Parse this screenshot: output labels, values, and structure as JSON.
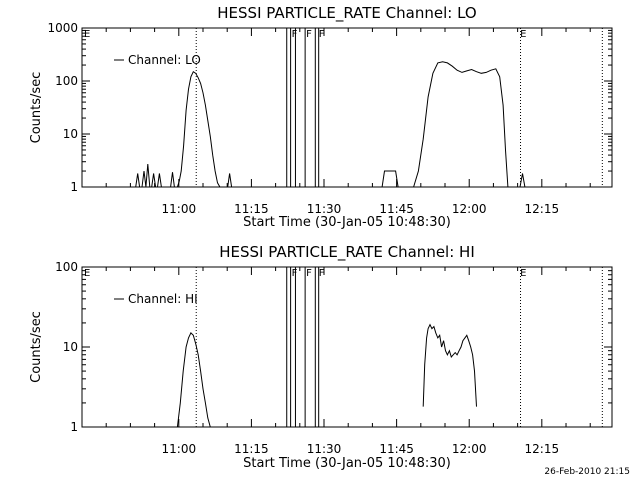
{
  "footer_date": "26-Feb-2010 21:15",
  "chart_data": [
    {
      "type": "line",
      "title": "HESSI PARTICLE_RATE Channel: LO",
      "xlabel": "Start Time (30-Jan-05 10:48:30)",
      "ylabel": "Counts/sec",
      "yscale": "log",
      "ylim": [
        1,
        1000
      ],
      "xlim_min": [
        -8.5,
        101
      ],
      "x_ticks": [
        {
          "t": 11.5,
          "label": "11:00"
        },
        {
          "t": 26.5,
          "label": "11:15"
        },
        {
          "t": 41.5,
          "label": "11:30"
        },
        {
          "t": 56.5,
          "label": "11:45"
        },
        {
          "t": 71.5,
          "label": "12:00"
        },
        {
          "t": 86.5,
          "label": "12:15"
        }
      ],
      "y_ticks": [
        {
          "v": 1,
          "label": "1"
        },
        {
          "v": 10,
          "label": "10"
        },
        {
          "v": 100,
          "label": "100"
        },
        {
          "v": 1000,
          "label": "1000"
        }
      ],
      "legend": "Channel: LO",
      "legend_position": "top-left",
      "flags": [
        {
          "t": -8.3,
          "label": "E"
        },
        {
          "t": 81.8,
          "label": "E"
        },
        {
          "t": 34.6,
          "label": "F"
        },
        {
          "t": 37.6,
          "label": "F"
        },
        {
          "t": 40.2,
          "label": "F"
        }
      ],
      "dotted_lines": [
        15.1,
        82.1,
        99.0
      ],
      "solid_lines": [
        33.8,
        34.6,
        35.6,
        37.6,
        39.7,
        40.4
      ],
      "series": [
        {
          "segments": [
            [
              [
                2.6,
                1
              ],
              [
                3.0,
                1.8
              ],
              [
                3.4,
                1
              ],
              [
                3.9,
                1
              ],
              [
                4.3,
                2.0
              ],
              [
                4.7,
                1
              ],
              [
                5.1,
                2.7
              ],
              [
                5.5,
                1
              ],
              [
                5.9,
                1
              ],
              [
                6.3,
                1.8
              ],
              [
                6.7,
                1
              ],
              [
                7.1,
                1
              ],
              [
                7.5,
                1.8
              ],
              [
                7.9,
                1
              ]
            ],
            [
              [
                9.8,
                1
              ],
              [
                10.2,
                1.9
              ],
              [
                10.6,
                1
              ]
            ],
            [
              [
                11.2,
                1
              ],
              [
                11.6,
                1.3
              ],
              [
                12.0,
                2.0
              ],
              [
                12.5,
                6
              ],
              [
                13.0,
                28
              ],
              [
                13.5,
                70
              ],
              [
                14.0,
                120
              ],
              [
                14.5,
                150
              ],
              [
                15.0,
                140
              ],
              [
                15.5,
                115
              ],
              [
                16.0,
                90
              ],
              [
                16.5,
                60
              ],
              [
                17.0,
                35
              ],
              [
                17.5,
                18
              ],
              [
                18.0,
                9
              ],
              [
                18.5,
                4
              ],
              [
                19.0,
                2
              ],
              [
                19.5,
                1.2
              ],
              [
                20.0,
                1
              ]
            ],
            [
              [
                21.6,
                1
              ],
              [
                22.0,
                1.8
              ],
              [
                22.4,
                1
              ]
            ],
            [
              [
                53.5,
                1
              ],
              [
                54.0,
                2.0
              ],
              [
                56.3,
                2.0
              ],
              [
                56.8,
                1
              ]
            ],
            [
              [
                60.0,
                1
              ],
              [
                61.0,
                2.0
              ],
              [
                62.0,
                8
              ],
              [
                63.0,
                50
              ],
              [
                64.0,
                140
              ],
              [
                65.0,
                220
              ],
              [
                66.0,
                230
              ],
              [
                67.0,
                220
              ],
              [
                68.0,
                190
              ],
              [
                69.0,
                160
              ],
              [
                70.0,
                145
              ],
              [
                71.0,
                155
              ],
              [
                72.0,
                165
              ],
              [
                73.0,
                150
              ],
              [
                74.0,
                140
              ],
              [
                75.0,
                145
              ],
              [
                76.0,
                160
              ],
              [
                77.0,
                170
              ],
              [
                77.8,
                120
              ],
              [
                78.5,
                35
              ],
              [
                79.0,
                5
              ],
              [
                79.5,
                1
              ]
            ],
            [
              [
                82.0,
                1
              ],
              [
                82.5,
                1.8
              ],
              [
                83.0,
                1
              ]
            ]
          ]
        }
      ]
    },
    {
      "type": "line",
      "title": "HESSI PARTICLE_RATE Channel: HI",
      "xlabel": "Start Time (30-Jan-05 10:48:30)",
      "ylabel": "Counts/sec",
      "yscale": "log",
      "ylim": [
        1,
        100
      ],
      "xlim_min": [
        -8.5,
        101
      ],
      "x_ticks": [
        {
          "t": 11.5,
          "label": "11:00"
        },
        {
          "t": 26.5,
          "label": "11:15"
        },
        {
          "t": 41.5,
          "label": "11:30"
        },
        {
          "t": 56.5,
          "label": "11:45"
        },
        {
          "t": 71.5,
          "label": "12:00"
        },
        {
          "t": 86.5,
          "label": "12:15"
        }
      ],
      "y_ticks": [
        {
          "v": 1,
          "label": "1"
        },
        {
          "v": 10,
          "label": "10"
        },
        {
          "v": 100,
          "label": "100"
        }
      ],
      "legend": "Channel: HI",
      "legend_position": "top-left",
      "flags": [
        {
          "t": -8.3,
          "label": "E"
        },
        {
          "t": 81.8,
          "label": "E"
        },
        {
          "t": 34.6,
          "label": "F"
        },
        {
          "t": 37.6,
          "label": "F"
        },
        {
          "t": 40.2,
          "label": "F"
        }
      ],
      "dotted_lines": [
        15.1,
        82.1,
        99.0
      ],
      "solid_lines": [
        33.8,
        34.6,
        35.6,
        37.6,
        39.7,
        40.4
      ],
      "series": [
        {
          "segments": [
            [
              [
                11.2,
                1
              ],
              [
                11.8,
                2.0
              ],
              [
                12.4,
                5
              ],
              [
                13.0,
                10
              ],
              [
                13.5,
                13
              ],
              [
                14.0,
                15
              ],
              [
                14.5,
                14
              ],
              [
                15.0,
                11
              ],
              [
                15.5,
                8
              ],
              [
                16.0,
                5
              ],
              [
                16.5,
                3
              ],
              [
                17.0,
                2
              ],
              [
                17.5,
                1.3
              ],
              [
                18.0,
                1
              ]
            ],
            [
              [
                62.0,
                1.8
              ],
              [
                62.3,
                6
              ],
              [
                62.7,
                13
              ],
              [
                63.0,
                17
              ],
              [
                63.4,
                19
              ],
              [
                63.8,
                17
              ],
              [
                64.2,
                18
              ],
              [
                64.6,
                15
              ],
              [
                65.0,
                13
              ],
              [
                65.4,
                14
              ],
              [
                65.8,
                10
              ],
              [
                66.2,
                12
              ],
              [
                66.6,
                9
              ],
              [
                67.0,
                8
              ],
              [
                67.4,
                9
              ],
              [
                67.8,
                7.5
              ],
              [
                68.2,
                8
              ],
              [
                68.6,
                8.5
              ],
              [
                69.0,
                8
              ],
              [
                69.4,
                9
              ],
              [
                69.8,
                10
              ],
              [
                70.2,
                12
              ],
              [
                70.6,
                13
              ],
              [
                71.0,
                14
              ],
              [
                71.4,
                12
              ],
              [
                71.8,
                10
              ],
              [
                72.2,
                8
              ],
              [
                72.6,
                5
              ],
              [
                73.0,
                1.8
              ]
            ]
          ]
        }
      ]
    }
  ]
}
